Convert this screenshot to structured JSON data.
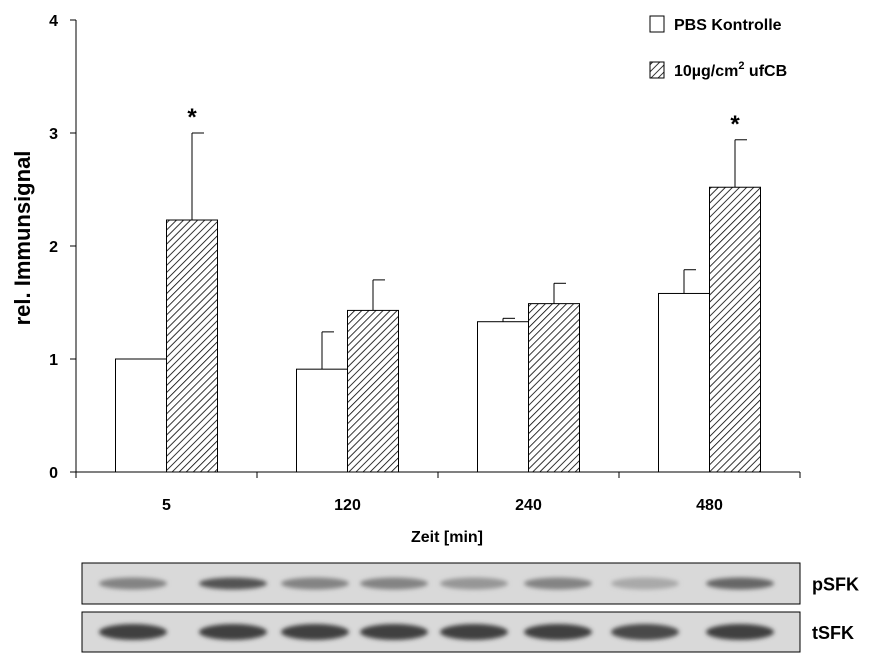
{
  "chart_data": {
    "type": "bar",
    "categories": [
      "5",
      "120",
      "240",
      "480"
    ],
    "xlabel": "Zeit [min]",
    "ylabel": "rel. Immunsignal",
    "ylim": [
      0,
      4
    ],
    "yticks": [
      "0",
      "1",
      "2",
      "3",
      "4"
    ],
    "grid": false,
    "legend_position": "top-right",
    "series": [
      {
        "name": "PBS Kontrolle",
        "values": [
          1.0,
          0.91,
          1.33,
          1.58
        ],
        "errors": [
          0.0,
          0.33,
          0.03,
          0.21
        ],
        "fill": "#ffffff",
        "pattern": "none"
      },
      {
        "name_main": "10µg/cm",
        "name_sup": "2",
        "name_rest": " ufCB",
        "values": [
          2.23,
          1.43,
          1.49,
          2.52
        ],
        "errors": [
          0.77,
          0.27,
          0.18,
          0.42
        ],
        "fill": "#ffffff",
        "pattern": "diagonal-hatch"
      }
    ],
    "significance": [
      "*",
      "",
      "",
      "*"
    ]
  },
  "blots": [
    {
      "label": "pSFK",
      "intensities": [
        0.55,
        0.8,
        0.55,
        0.55,
        0.45,
        0.55,
        0.35,
        0.7
      ]
    },
    {
      "label": "tSFK",
      "intensities": [
        0.9,
        0.9,
        0.9,
        0.9,
        0.9,
        0.9,
        0.85,
        0.9
      ]
    }
  ]
}
